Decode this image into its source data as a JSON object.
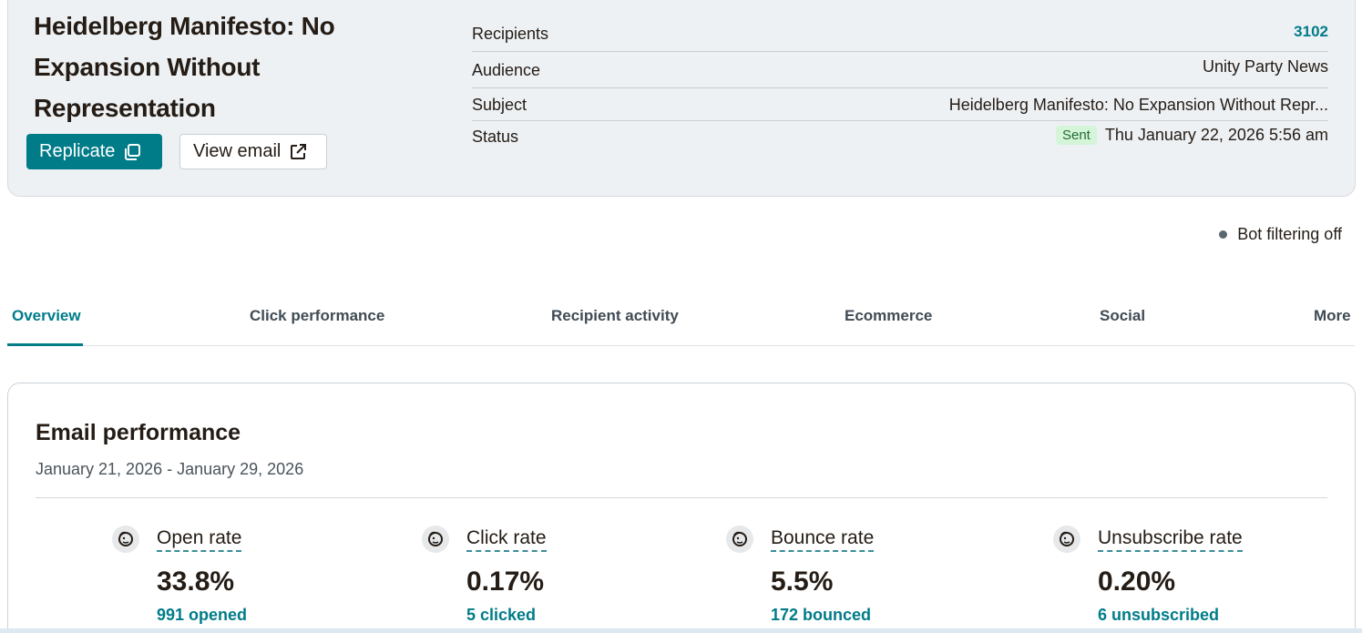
{
  "campaign": {
    "title": "Heidelberg Manifesto: No Expansion Without Representation",
    "replicate_label": "Replicate",
    "view_email_label": "View email"
  },
  "details": {
    "recipients_label": "Recipients",
    "recipients_value": "3102",
    "audience_label": "Audience",
    "audience_value": "Unity Party News",
    "subject_label": "Subject",
    "subject_value": "Heidelberg Manifesto: No Expansion Without Repr...",
    "status_label": "Status",
    "status_badge": "Sent",
    "status_value": "Thu January 22, 2026 5:56 am"
  },
  "bot_filter": "Bot filtering off",
  "tabs": [
    {
      "label": "Overview",
      "active": true
    },
    {
      "label": "Click performance"
    },
    {
      "label": "Recipient activity"
    },
    {
      "label": "Ecommerce"
    },
    {
      "label": "Social"
    },
    {
      "label": "More"
    }
  ],
  "performance": {
    "title": "Email performance",
    "date_range": "January 21, 2026 - January 29, 2026",
    "stats": [
      {
        "label": "Open rate",
        "value": "33.8%",
        "sub": "991 opened",
        "icon": "mailchimp-freddie-icon"
      },
      {
        "label": "Click rate",
        "value": "0.17%",
        "sub": "5 clicked",
        "icon": "mailchimp-freddie-icon"
      },
      {
        "label": "Bounce rate",
        "value": "5.5%",
        "sub": "172 bounced",
        "icon": "mailchimp-freddie-icon"
      },
      {
        "label": "Unsubscribe rate",
        "value": "0.20%",
        "sub": "6 unsubscribed",
        "icon": "mailchimp-freddie-icon"
      }
    ]
  },
  "colors": {
    "accent": "#007c89",
    "header_bg": "#eef1f4",
    "sent_badge_bg": "#d4f5d8"
  }
}
